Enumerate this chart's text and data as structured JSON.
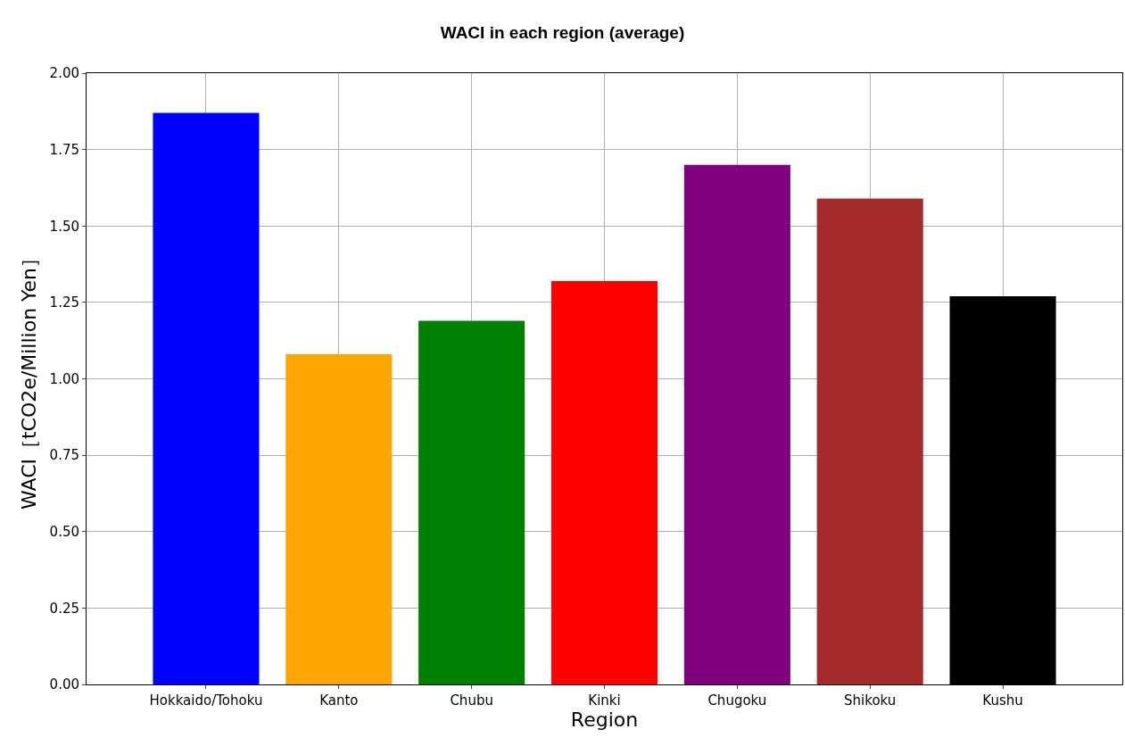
{
  "chart_data": {
    "type": "bar",
    "title": "WACI in each region (average)",
    "xlabel": "Region",
    "ylabel": "WACI［tCO2e/Million Yen］",
    "categories": [
      "Hokkaido/Tohoku",
      "Kanto",
      "Chubu",
      "Kinki",
      "Chugoku",
      "Shikoku",
      "Kushu"
    ],
    "values": [
      1.87,
      1.08,
      1.19,
      1.32,
      1.7,
      1.59,
      1.27
    ],
    "colors": [
      "#0000ff",
      "#ffa500",
      "#008000",
      "#ff0000",
      "#800080",
      "#a52a2a",
      "#000000"
    ],
    "ylim": [
      0,
      2
    ],
    "yticks": [
      {
        "value": 0,
        "label": "0.00"
      },
      {
        "value": 0.25,
        "label": "0.25"
      },
      {
        "value": 0.5,
        "label": "0.50"
      },
      {
        "value": 0.75,
        "label": "0.75"
      },
      {
        "value": 1,
        "label": "1.00"
      },
      {
        "value": 1.25,
        "label": "1.25"
      },
      {
        "value": 1.5,
        "label": "1.50"
      },
      {
        "value": 1.75,
        "label": "1.75"
      },
      {
        "value": 2,
        "label": "2.00"
      }
    ],
    "grid": true
  }
}
